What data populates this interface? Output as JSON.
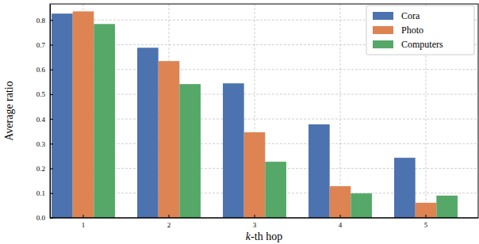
{
  "chart_data": {
    "type": "bar",
    "x_label": "k-th hop",
    "y_label": "Average ratio",
    "categories": [
      "1",
      "2",
      "3",
      "4",
      "5"
    ],
    "series": [
      {
        "name": "Cora",
        "color": "#4c72b0",
        "values": [
          0.826,
          0.688,
          0.544,
          0.378,
          0.243
        ]
      },
      {
        "name": "Photo",
        "color": "#dd8452",
        "values": [
          0.835,
          0.634,
          0.346,
          0.128,
          0.061
        ]
      },
      {
        "name": "Computers",
        "color": "#55a868",
        "values": [
          0.784,
          0.541,
          0.227,
          0.099,
          0.09
        ]
      }
    ],
    "ylim": [
      0,
      0.865
    ],
    "yticks": [
      {
        "value": 0,
        "label": "0.0"
      },
      0.1,
      0.2,
      0.3,
      0.4,
      0.5,
      0.6,
      0.7,
      0.8
    ],
    "grid": true,
    "legend": "upper right"
  }
}
